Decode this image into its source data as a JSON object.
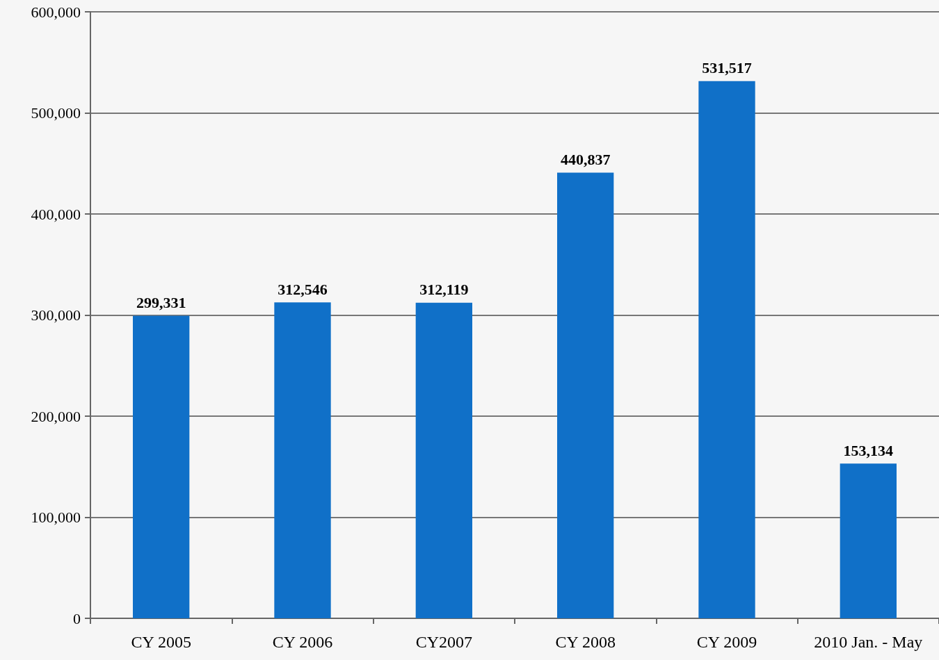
{
  "chart_data": {
    "type": "bar",
    "categories": [
      "CY 2005",
      "CY 2006",
      "CY2007",
      "CY 2008",
      "CY 2009",
      "2010 Jan. - May"
    ],
    "values": [
      299331,
      312546,
      312119,
      440837,
      531517,
      153134
    ],
    "value_labels": [
      "299,331",
      "312,546",
      "312,119",
      "440,837",
      "531,517",
      "153,134"
    ],
    "color": "#1070c8",
    "ylim": [
      0,
      600000
    ],
    "yticks": [
      {
        "value": 0,
        "label": "0"
      },
      {
        "value": 100000,
        "label": "100,000"
      },
      {
        "value": 200000,
        "label": "200,000"
      },
      {
        "value": 300000,
        "label": "300,000"
      },
      {
        "value": 400000,
        "label": "400,000"
      },
      {
        "value": 500000,
        "label": "500,000"
      },
      {
        "value": 600000,
        "label": "600,000"
      }
    ],
    "grid": "y"
  }
}
